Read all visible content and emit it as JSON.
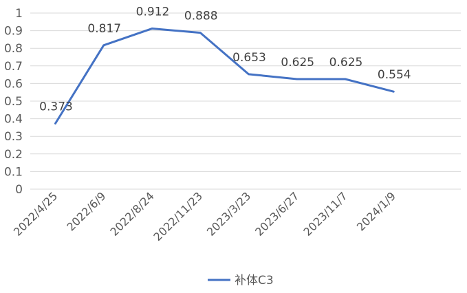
{
  "chart_data": {
    "type": "line",
    "x": [
      "2022/4/25",
      "2022/6/9",
      "2022/8/24",
      "2022/11/23",
      "2023/3/23",
      "2023/6/27",
      "2023/11/7",
      "2024/1/9"
    ],
    "series": [
      {
        "name": "补体C3",
        "values": [
          0.373,
          0.817,
          0.912,
          0.888,
          0.653,
          0.625,
          0.625,
          0.554
        ],
        "color": "#4472C4"
      }
    ],
    "data_labels": [
      "0.373",
      "0.817",
      "0.912",
      "0.888",
      "0.653",
      "0.625",
      "0.625",
      "0.554"
    ],
    "y_ticks": [
      "0",
      "0.1",
      "0.2",
      "0.3",
      "0.4",
      "0.5",
      "0.6",
      "0.7",
      "0.8",
      "0.9",
      "1"
    ],
    "ylim": [
      0,
      1
    ],
    "grid": true,
    "legend_position": "bottom"
  }
}
